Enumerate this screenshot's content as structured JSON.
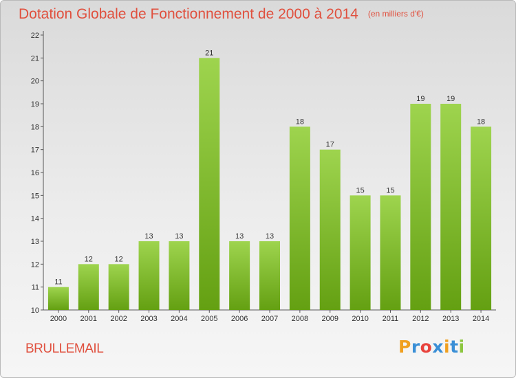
{
  "header": {
    "title": "Dotation Globale de Fonctionnement de 2000 à 2014",
    "unit": "(en milliers d'€)"
  },
  "footer": {
    "commune": "BRULLEMAIL",
    "logo_letters": [
      "P",
      "r",
      "o",
      "x",
      "i",
      "t",
      "i"
    ],
    "logo_colors": [
      "#f0a020",
      "#3a8fd6",
      "#e8423c",
      "#3a8fd6",
      "#f0a020",
      "#3a8fd6",
      "#8cc63f"
    ]
  },
  "colors": {
    "bar_light": "#9ed44e",
    "bar_dark": "#64a012",
    "title": "#e0503e",
    "axis": "#555555"
  },
  "chart_data": {
    "type": "bar",
    "categories": [
      "2000",
      "2001",
      "2002",
      "2003",
      "2004",
      "2005",
      "2006",
      "2007",
      "2008",
      "2009",
      "2010",
      "2011",
      "2012",
      "2013",
      "2014"
    ],
    "values": [
      11,
      12,
      12,
      13,
      13,
      21,
      13,
      13,
      18,
      17,
      15,
      15,
      19,
      19,
      18
    ],
    "data_labels": [
      "11",
      "12",
      "12",
      "13",
      "13",
      "21",
      "13",
      "13",
      "18",
      "17",
      "15",
      "15",
      "19",
      "19",
      "18"
    ],
    "y_ticks": [
      "10",
      "11",
      "12",
      "13",
      "14",
      "15",
      "16",
      "17",
      "18",
      "19",
      "20",
      "21",
      "22"
    ],
    "ylim": [
      10,
      22
    ],
    "grid": false
  }
}
